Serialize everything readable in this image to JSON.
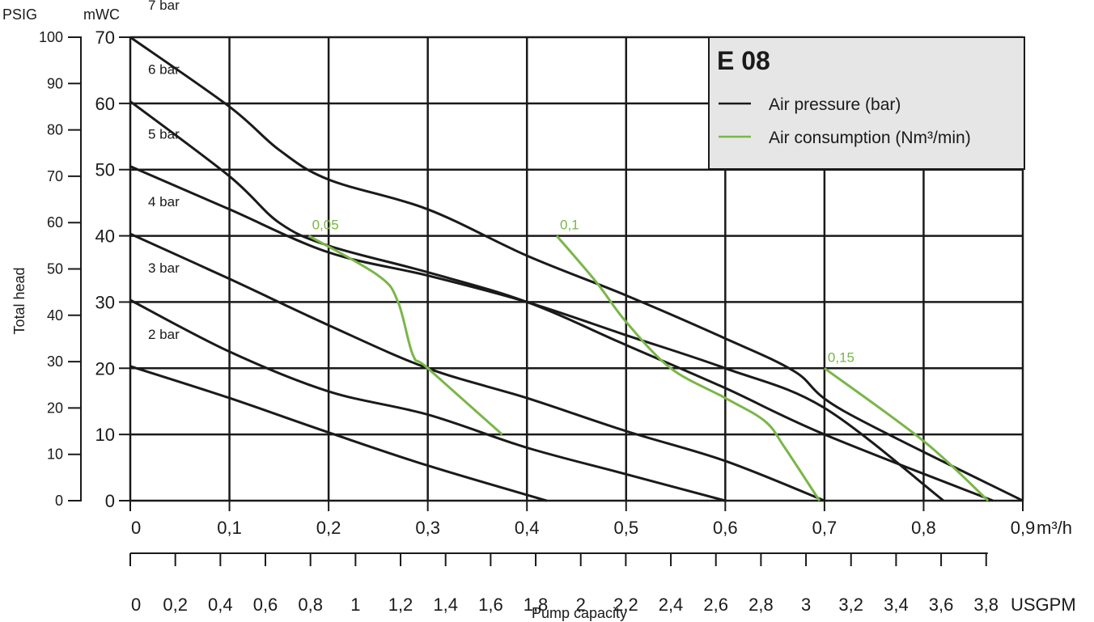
{
  "chart_data": {
    "type": "line",
    "title": "E 08",
    "legend": {
      "position": "top-right",
      "entries": [
        {
          "label": "Air pressure (bar)",
          "color": "#1a1a1a"
        },
        {
          "label": "Air consumption (Nm³/min)",
          "color": "#7ab648"
        }
      ]
    },
    "x_axis": {
      "label": "Pump capacity",
      "unit": "m³/h",
      "range": [
        0,
        0.9
      ],
      "ticks": [
        {
          "v": 0,
          "t": "0"
        },
        {
          "v": 0.1,
          "t": "0,1"
        },
        {
          "v": 0.2,
          "t": "0,2"
        },
        {
          "v": 0.3,
          "t": "0,3"
        },
        {
          "v": 0.4,
          "t": "0,4"
        },
        {
          "v": 0.5,
          "t": "0,5"
        },
        {
          "v": 0.6,
          "t": "0,6"
        },
        {
          "v": 0.7,
          "t": "0,7"
        },
        {
          "v": 0.8,
          "t": "0,8"
        },
        {
          "v": 0.9,
          "t": "0,9"
        }
      ]
    },
    "x2_axis": {
      "unit": "USGPM",
      "ticks": [
        {
          "v": 0,
          "t": "0"
        },
        {
          "v": 0.2,
          "t": "0,2"
        },
        {
          "v": 0.4,
          "t": "0,4"
        },
        {
          "v": 0.6,
          "t": "0,6"
        },
        {
          "v": 0.8,
          "t": "0,8"
        },
        {
          "v": 1,
          "t": "1"
        },
        {
          "v": 1.2,
          "t": "1,2"
        },
        {
          "v": 1.4,
          "t": "1,4"
        },
        {
          "v": 1.6,
          "t": "1,6"
        },
        {
          "v": 1.8,
          "t": "1,8"
        },
        {
          "v": 2,
          "t": "2"
        },
        {
          "v": 2.2,
          "t": "2,2"
        },
        {
          "v": 2.4,
          "t": "2,4"
        },
        {
          "v": 2.6,
          "t": "2,6"
        },
        {
          "v": 2.8,
          "t": "2,8"
        },
        {
          "v": 3,
          "t": "3"
        },
        {
          "v": 3.2,
          "t": "3,2"
        },
        {
          "v": 3.4,
          "t": "3,4"
        },
        {
          "v": 3.6,
          "t": "3,6"
        },
        {
          "v": 3.8,
          "t": "3,8"
        }
      ]
    },
    "y_axis": {
      "unit": "mWC",
      "range": [
        0,
        70
      ],
      "ticks": [
        {
          "v": 0,
          "t": "0"
        },
        {
          "v": 10,
          "t": "10"
        },
        {
          "v": 20,
          "t": "20"
        },
        {
          "v": 30,
          "t": "30"
        },
        {
          "v": 40,
          "t": "40"
        },
        {
          "v": 50,
          "t": "50"
        },
        {
          "v": 60,
          "t": "60"
        },
        {
          "v": 70,
          "t": "70"
        }
      ]
    },
    "y2_axis": {
      "label": "Total head",
      "unit": "PSIG",
      "range": [
        0,
        100
      ],
      "ticks": [
        {
          "v": 0,
          "t": "0"
        },
        {
          "v": 10,
          "t": "10"
        },
        {
          "v": 20,
          "t": "20"
        },
        {
          "v": 30,
          "t": "30"
        },
        {
          "v": 40,
          "t": "40"
        },
        {
          "v": 50,
          "t": "50"
        },
        {
          "v": 60,
          "t": "60"
        },
        {
          "v": 70,
          "t": "70"
        },
        {
          "v": 80,
          "t": "80"
        },
        {
          "v": 90,
          "t": "90"
        },
        {
          "v": 100,
          "t": "100"
        }
      ]
    },
    "grid": true,
    "pressure_series": [
      {
        "name": "2 bar",
        "label": "2 bar",
        "points": [
          [
            0,
            20.3
          ],
          [
            0.1,
            15.5
          ],
          [
            0.2,
            10.3
          ],
          [
            0.3,
            5.3
          ],
          [
            0.42,
            0
          ]
        ]
      },
      {
        "name": "3 bar",
        "label": "3 bar",
        "points": [
          [
            0,
            30.3
          ],
          [
            0.1,
            22.5
          ],
          [
            0.2,
            16.5
          ],
          [
            0.3,
            13
          ],
          [
            0.4,
            8
          ],
          [
            0.5,
            4
          ],
          [
            0.6,
            0
          ]
        ]
      },
      {
        "name": "4 bar",
        "label": "4 bar",
        "points": [
          [
            0,
            40.3
          ],
          [
            0.1,
            33.5
          ],
          [
            0.2,
            26.5
          ],
          [
            0.3,
            20
          ],
          [
            0.4,
            15.5
          ],
          [
            0.5,
            10.5
          ],
          [
            0.6,
            6
          ],
          [
            0.7,
            0
          ]
        ]
      },
      {
        "name": "5 bar",
        "label": "5 bar",
        "points": [
          [
            0,
            50.5
          ],
          [
            0.1,
            44
          ],
          [
            0.2,
            37.5
          ],
          [
            0.3,
            34
          ],
          [
            0.4,
            30
          ],
          [
            0.5,
            25
          ],
          [
            0.6,
            20
          ],
          [
            0.7,
            14
          ],
          [
            0.82,
            0
          ]
        ]
      },
      {
        "name": "6 bar",
        "label": "6 bar",
        "points": [
          [
            0,
            60.3
          ],
          [
            0.1,
            49
          ],
          [
            0.15,
            42
          ],
          [
            0.2,
            38.5
          ],
          [
            0.3,
            34.5
          ],
          [
            0.4,
            30
          ],
          [
            0.5,
            23.5
          ],
          [
            0.6,
            17
          ],
          [
            0.7,
            10
          ],
          [
            0.87,
            0
          ]
        ]
      },
      {
        "name": "7 bar",
        "label": "7 bar",
        "points": [
          [
            0,
            70
          ],
          [
            0.1,
            59.5
          ],
          [
            0.15,
            53
          ],
          [
            0.2,
            48.5
          ],
          [
            0.3,
            44
          ],
          [
            0.4,
            37
          ],
          [
            0.5,
            31
          ],
          [
            0.6,
            24.5
          ],
          [
            0.67,
            19.5
          ],
          [
            0.72,
            13.5
          ],
          [
            0.9,
            0
          ]
        ]
      }
    ],
    "consumption_series": [
      {
        "name": "0,05",
        "label": "0,05",
        "points": [
          [
            0.18,
            40
          ],
          [
            0.25,
            34
          ],
          [
            0.27,
            30
          ],
          [
            0.285,
            22
          ],
          [
            0.3,
            20
          ],
          [
            0.375,
            10
          ]
        ]
      },
      {
        "name": "0,1",
        "label": "0,1",
        "points": [
          [
            0.43,
            40
          ],
          [
            0.47,
            33
          ],
          [
            0.5,
            27
          ],
          [
            0.545,
            20
          ],
          [
            0.6,
            15.5
          ],
          [
            0.64,
            12
          ],
          [
            0.66,
            8
          ],
          [
            0.695,
            0
          ]
        ]
      },
      {
        "name": "0,15",
        "label": "0,15",
        "points": [
          [
            0.7,
            20
          ],
          [
            0.8,
            9
          ],
          [
            0.865,
            0
          ]
        ]
      }
    ]
  }
}
